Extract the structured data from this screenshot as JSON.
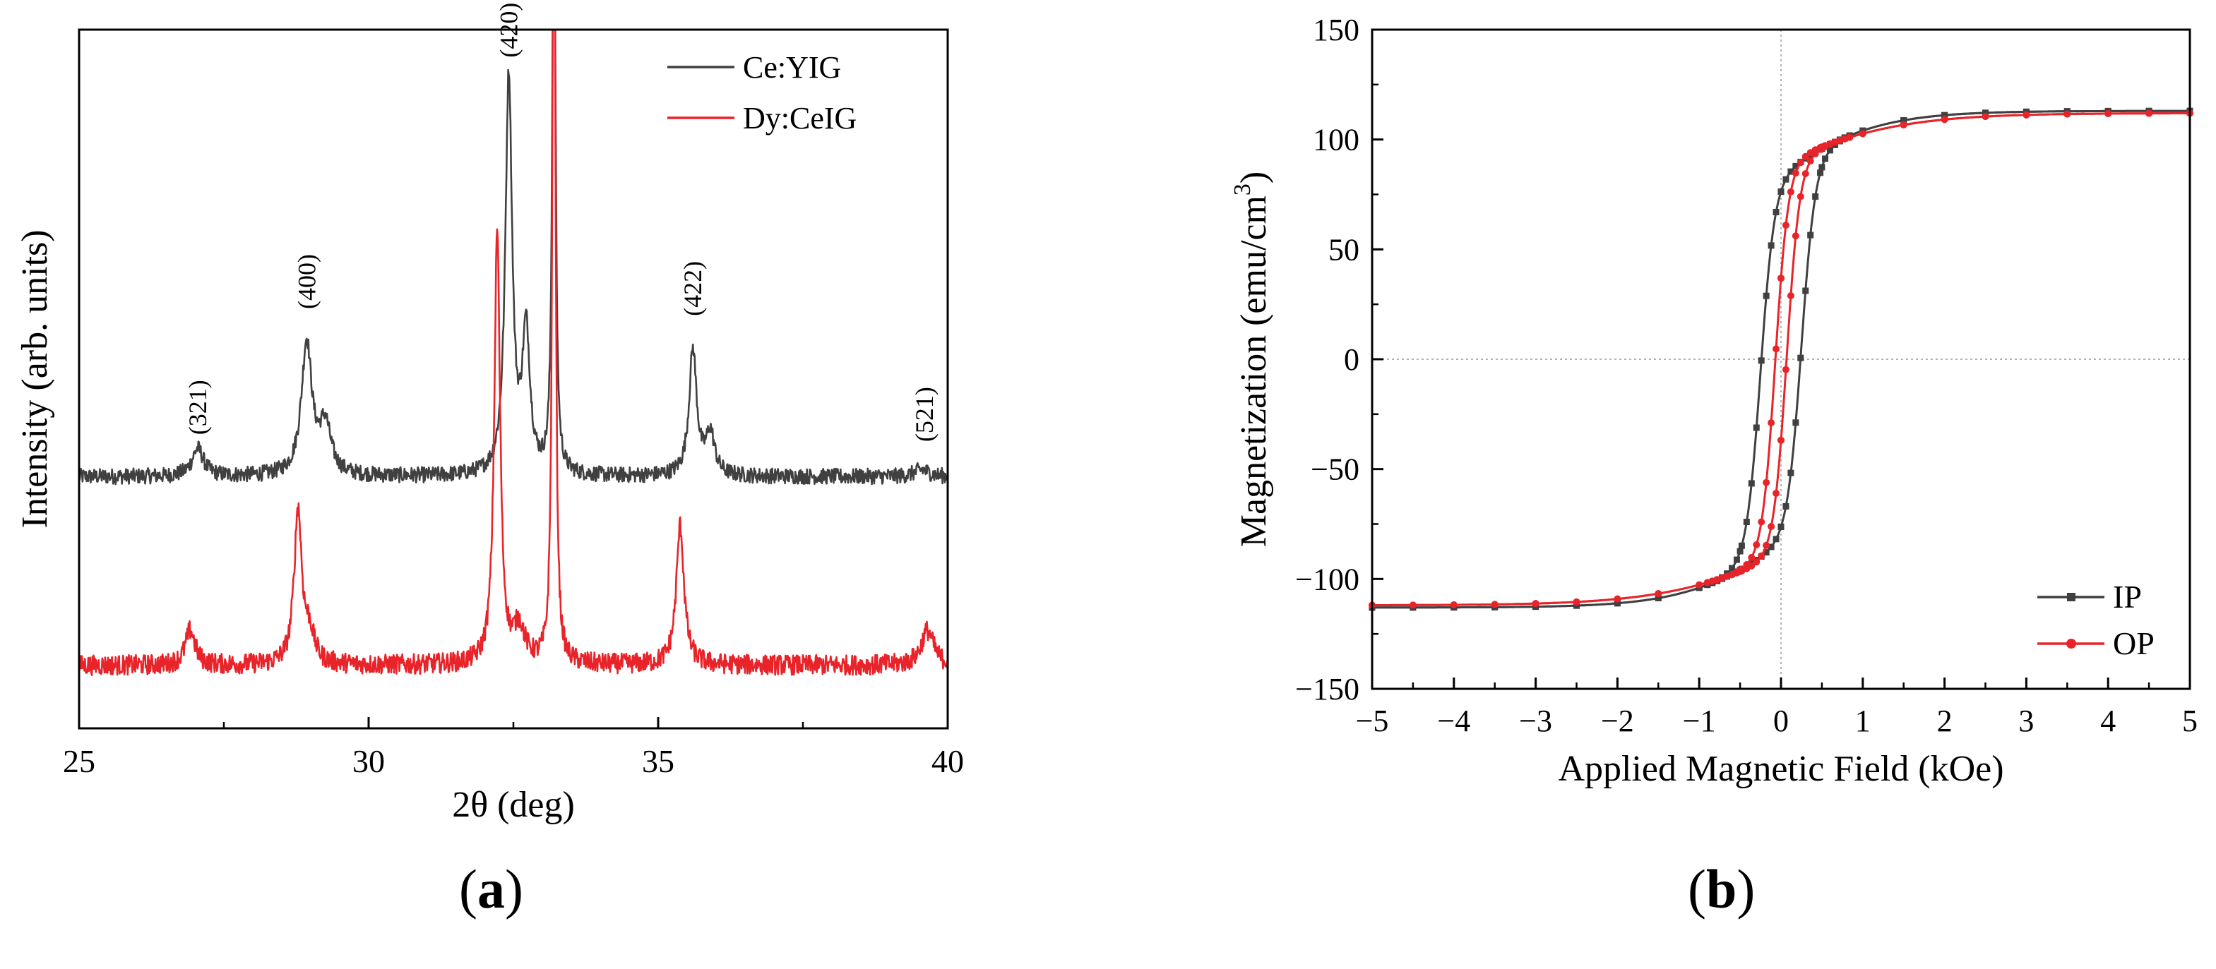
{
  "figure": {
    "label_a": "a",
    "label_b": "b",
    "paren_open": "(",
    "paren_close": ")"
  },
  "chart_data": [
    {
      "id": "xrd",
      "type": "line",
      "title": "",
      "xlabel": "2θ (deg)",
      "ylabel": "Intensity (arb. units)",
      "xlim": [
        25,
        40
      ],
      "ylim": [
        0,
        100
      ],
      "y_ticks_shown": false,
      "xticks": [
        25,
        30,
        35,
        40
      ],
      "legend": {
        "placement": "top-right",
        "entries": [
          "Ce:YIG",
          "Dy:CeIG"
        ]
      },
      "colors": {
        "Ce:YIG": "#404040",
        "Dy:CeIG": "#e8242a"
      },
      "series": [
        {
          "name": "Ce:YIG",
          "baseline": 36,
          "noise": 0.7,
          "peaks": [
            {
              "x": 27.05,
              "height": 4,
              "width": 0.12
            },
            {
              "x": 28.93,
              "height": 19,
              "width": 0.11
            },
            {
              "x": 29.25,
              "height": 7,
              "width": 0.12
            },
            {
              "x": 32.42,
              "height": 57,
              "width": 0.07
            },
            {
              "x": 32.72,
              "height": 20,
              "width": 0.08
            },
            {
              "x": 33.2,
              "height": 100,
              "width": 0.03
            },
            {
              "x": 35.6,
              "height": 18,
              "width": 0.08
            },
            {
              "x": 35.9,
              "height": 6,
              "width": 0.09
            },
            {
              "x": 39.55,
              "height": 1,
              "width": 0.15
            }
          ]
        },
        {
          "name": "Dy:CeIG",
          "baseline": 9,
          "noise": 0.9,
          "peaks": [
            {
              "x": 26.92,
              "height": 5,
              "width": 0.1
            },
            {
              "x": 28.78,
              "height": 22,
              "width": 0.08
            },
            {
              "x": 28.98,
              "height": 4,
              "width": 0.1
            },
            {
              "x": 32.22,
              "height": 62,
              "width": 0.06
            },
            {
              "x": 32.6,
              "height": 5,
              "width": 0.12
            },
            {
              "x": 33.2,
              "height": 130,
              "width": 0.03
            },
            {
              "x": 35.38,
              "height": 20,
              "width": 0.08
            },
            {
              "x": 39.65,
              "height": 5,
              "width": 0.13
            }
          ]
        }
      ],
      "annotations": [
        {
          "text": "(321)",
          "x": 27.05,
          "y": 42
        },
        {
          "text": "(400)",
          "x": 28.93,
          "y": 60
        },
        {
          "text": "(420)",
          "x": 32.42,
          "y": 96
        },
        {
          "text": "(422)",
          "x": 35.6,
          "y": 59
        },
        {
          "text": "(521)",
          "x": 39.6,
          "y": 41
        }
      ]
    },
    {
      "id": "mh",
      "type": "line",
      "title": "",
      "xlabel": "Applied Magnetic Field (kOe)",
      "ylabel_main": "Magnetization (emu/cm",
      "ylabel_sup": "3",
      "ylabel_close": ")",
      "xlim": [
        -5,
        5
      ],
      "ylim": [
        -150,
        150
      ],
      "xticks": [
        -5,
        -4,
        -3,
        -2,
        -1,
        0,
        1,
        2,
        3,
        4,
        5
      ],
      "yticks": [
        -150,
        -100,
        -50,
        0,
        50,
        100,
        150
      ],
      "xtick_labels": [
        "−5",
        "−4",
        "−3",
        "−2",
        "−1",
        "0",
        "1",
        "2",
        "3",
        "4",
        "5"
      ],
      "ytick_labels": [
        "−150",
        "−100",
        "−50",
        "0",
        "50",
        "100",
        "150"
      ],
      "zero_lines": true,
      "legend": {
        "placement": "bottom-right",
        "entries": [
          "IP",
          "OP"
        ]
      },
      "colors": {
        "IP": "#404040",
        "OP": "#e8242a"
      },
      "series": [
        {
          "name": "IP",
          "marker": "square",
          "Ms": 113,
          "Hc": 0.25,
          "width": 0.17,
          "slope": 1.2,
          "core_frac": 0.75,
          "tail_scale": 0.55
        },
        {
          "name": "OP",
          "marker": "circle",
          "Ms": 112,
          "Hc": 0.07,
          "width": 0.16,
          "slope": 1.5,
          "core_frac": 0.8,
          "tail_scale": 0.3
        }
      ]
    }
  ]
}
